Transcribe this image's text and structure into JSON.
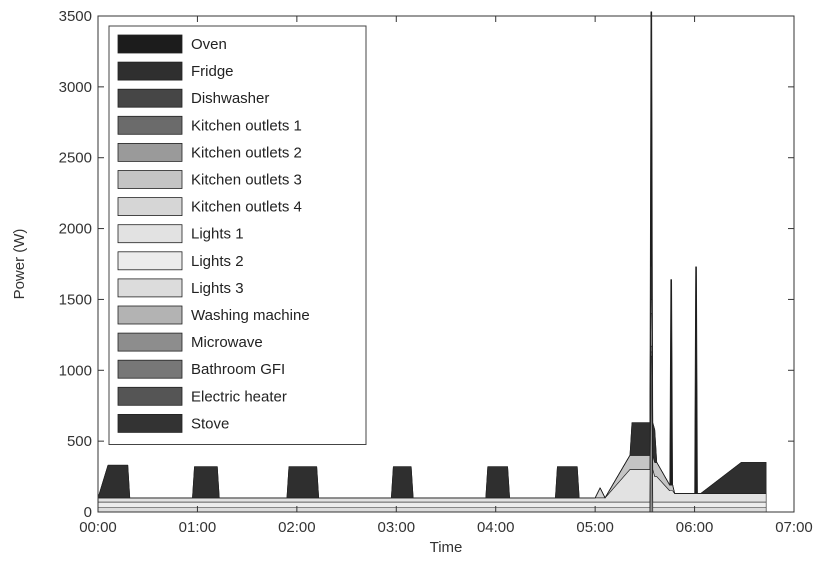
{
  "chart_data": {
    "type": "area",
    "stacked": true,
    "title": "",
    "xlabel": "Time",
    "ylabel": "Power (W)",
    "xlim_hours": [
      0,
      7
    ],
    "ylim": [
      0,
      3500
    ],
    "xticks": [
      "00:00",
      "01:00",
      "02:00",
      "03:00",
      "04:00",
      "05:00",
      "06:00",
      "07:00"
    ],
    "yticks": [
      0,
      500,
      1000,
      1500,
      2000,
      2500,
      3000,
      3500
    ],
    "grid": false,
    "legend_position": "top-left",
    "legend": [
      {
        "name": "Oven",
        "color": "#1c1c1c"
      },
      {
        "name": "Fridge",
        "color": "#2f2f2f"
      },
      {
        "name": "Dishwasher",
        "color": "#464646"
      },
      {
        "name": "Kitchen outlets 1",
        "color": "#6b6b6b"
      },
      {
        "name": "Kitchen outlets 2",
        "color": "#9a9a9a"
      },
      {
        "name": "Kitchen outlets 3",
        "color": "#c4c4c4"
      },
      {
        "name": "Kitchen outlets 4",
        "color": "#d6d6d6"
      },
      {
        "name": "Lights 1",
        "color": "#e2e2e2"
      },
      {
        "name": "Lights 2",
        "color": "#ececec"
      },
      {
        "name": "Lights 3",
        "color": "#dcdcdc"
      },
      {
        "name": "Washing machine",
        "color": "#b3b3b3"
      },
      {
        "name": "Microwave",
        "color": "#8d8d8d"
      },
      {
        "name": "Bathroom GFI",
        "color": "#777777"
      },
      {
        "name": "Electric heater",
        "color": "#555555"
      },
      {
        "name": "Stove",
        "color": "#333333"
      }
    ],
    "stack_order_bottom_to_top": [
      "Stove",
      "Electric heater",
      "Bathroom GFI",
      "Microwave",
      "Washing machine",
      "Lights 3",
      "Lights 2",
      "Lights 1",
      "Kitchen outlets 4",
      "Kitchen outlets 3",
      "Kitchen outlets 2",
      "Kitchen outlets 1",
      "Dishwasher",
      "Fridge",
      "Oven"
    ],
    "time_hours": [
      0,
      0.1,
      0.12,
      0.3,
      0.32,
      0.4,
      0.95,
      0.97,
      1.2,
      1.22,
      1.9,
      1.92,
      2.2,
      2.22,
      2.95,
      2.97,
      3.15,
      3.17,
      3.9,
      3.92,
      4.12,
      4.14,
      4.6,
      4.62,
      4.82,
      4.84,
      5.0,
      5.05,
      5.1,
      5.35,
      5.37,
      5.55,
      5.56,
      5.57,
      5.58,
      5.6,
      5.62,
      5.75,
      5.76,
      5.77,
      5.78,
      5.8,
      5.81,
      6.0,
      6.01,
      6.02,
      6.03,
      6.04,
      6.05,
      6.06,
      6.47,
      6.5,
      6.72
    ],
    "series": [
      {
        "name": "Stove",
        "values": [
          0,
          0,
          0,
          0,
          0,
          0,
          0,
          0,
          0,
          0,
          0,
          0,
          0,
          0,
          0,
          0,
          0,
          0,
          0,
          0,
          0,
          0,
          0,
          0,
          0,
          0,
          0,
          0,
          0,
          0,
          0,
          0,
          0,
          0,
          0,
          0,
          0,
          0,
          0,
          0,
          0,
          0,
          0,
          0,
          0,
          0,
          0,
          0,
          0,
          0,
          0,
          0,
          0
        ]
      },
      {
        "name": "Electric heater",
        "values": [
          0,
          0,
          0,
          0,
          0,
          0,
          0,
          0,
          0,
          0,
          0,
          0,
          0,
          0,
          0,
          0,
          0,
          0,
          0,
          0,
          0,
          0,
          0,
          0,
          0,
          0,
          0,
          0,
          0,
          0,
          0,
          0,
          0,
          0,
          0,
          0,
          0,
          0,
          0,
          0,
          0,
          0,
          0,
          0,
          0,
          0,
          0,
          0,
          0,
          0,
          0,
          0,
          0
        ]
      },
      {
        "name": "Bathroom GFI",
        "values": [
          0,
          0,
          0,
          0,
          0,
          0,
          0,
          0,
          0,
          0,
          0,
          0,
          0,
          0,
          0,
          0,
          0,
          0,
          0,
          0,
          0,
          0,
          0,
          0,
          0,
          0,
          0,
          0,
          0,
          0,
          0,
          0,
          0,
          0,
          0,
          0,
          0,
          0,
          0,
          0,
          0,
          0,
          0,
          0,
          0,
          0,
          0,
          0,
          0,
          0,
          0,
          0,
          0
        ]
      },
      {
        "name": "Microwave",
        "values": [
          0,
          0,
          0,
          0,
          0,
          0,
          0,
          0,
          0,
          0,
          0,
          0,
          0,
          0,
          0,
          0,
          0,
          0,
          0,
          0,
          0,
          0,
          0,
          0,
          0,
          0,
          0,
          0,
          0,
          0,
          0,
          0,
          1100,
          1100,
          0,
          0,
          0,
          0,
          0,
          0,
          0,
          0,
          0,
          0,
          0,
          0,
          0,
          0,
          0,
          0,
          0,
          0,
          0
        ]
      },
      {
        "name": "Washing machine",
        "values": [
          0,
          0,
          0,
          0,
          0,
          0,
          0,
          0,
          0,
          0,
          0,
          0,
          0,
          0,
          0,
          0,
          0,
          0,
          0,
          0,
          0,
          0,
          0,
          0,
          0,
          0,
          0,
          0,
          0,
          0,
          0,
          0,
          0,
          0,
          0,
          0,
          0,
          0,
          0,
          0,
          0,
          0,
          0,
          0,
          0,
          0,
          0,
          0,
          0,
          0,
          0,
          0,
          0
        ]
      },
      {
        "name": "Lights 3",
        "values": [
          30,
          30,
          30,
          30,
          30,
          30,
          30,
          30,
          30,
          30,
          30,
          30,
          30,
          30,
          30,
          30,
          30,
          30,
          30,
          30,
          30,
          30,
          30,
          30,
          30,
          30,
          30,
          30,
          30,
          30,
          30,
          30,
          30,
          30,
          30,
          30,
          30,
          30,
          30,
          30,
          30,
          30,
          30,
          30,
          30,
          30,
          30,
          30,
          30,
          30,
          30,
          30,
          30
        ]
      },
      {
        "name": "Lights 2",
        "values": [
          40,
          40,
          40,
          40,
          40,
          40,
          40,
          40,
          40,
          40,
          40,
          40,
          40,
          40,
          40,
          40,
          40,
          40,
          40,
          40,
          40,
          40,
          40,
          40,
          40,
          40,
          40,
          40,
          40,
          40,
          40,
          40,
          40,
          40,
          40,
          40,
          40,
          40,
          40,
          40,
          40,
          40,
          40,
          40,
          40,
          40,
          40,
          40,
          40,
          40,
          40,
          40,
          40
        ]
      },
      {
        "name": "Lights 1",
        "values": [
          30,
          30,
          30,
          30,
          30,
          30,
          30,
          30,
          30,
          30,
          30,
          30,
          30,
          30,
          30,
          30,
          30,
          30,
          30,
          30,
          30,
          30,
          30,
          30,
          30,
          30,
          30,
          30,
          30,
          230,
          230,
          230,
          230,
          230,
          230,
          180,
          180,
          80,
          80,
          80,
          80,
          60,
          60,
          60,
          60,
          60,
          60,
          60,
          60,
          60,
          60,
          60,
          60
        ]
      },
      {
        "name": "Kitchen outlets 4",
        "values": [
          0,
          0,
          0,
          0,
          0,
          0,
          0,
          0,
          0,
          0,
          0,
          0,
          0,
          0,
          0,
          0,
          0,
          0,
          0,
          0,
          0,
          0,
          0,
          0,
          0,
          0,
          0,
          70,
          0,
          0,
          0,
          0,
          0,
          0,
          0,
          0,
          0,
          0,
          0,
          0,
          0,
          0,
          0,
          0,
          0,
          0,
          0,
          0,
          0,
          0,
          0,
          0,
          0
        ]
      },
      {
        "name": "Kitchen outlets 3",
        "values": [
          0,
          0,
          0,
          0,
          0,
          0,
          0,
          0,
          0,
          0,
          0,
          0,
          0,
          0,
          0,
          0,
          0,
          0,
          0,
          0,
          0,
          0,
          0,
          0,
          0,
          0,
          0,
          0,
          0,
          100,
          100,
          100,
          100,
          100,
          100,
          100,
          100,
          40,
          40,
          40,
          40,
          0,
          0,
          0,
          0,
          0,
          0,
          0,
          0,
          0,
          0,
          0,
          0
        ]
      },
      {
        "name": "Kitchen outlets 2",
        "values": [
          0,
          0,
          0,
          0,
          0,
          0,
          0,
          0,
          0,
          0,
          0,
          0,
          0,
          0,
          0,
          0,
          0,
          0,
          0,
          0,
          0,
          0,
          0,
          0,
          0,
          0,
          0,
          0,
          0,
          0,
          0,
          0,
          0,
          0,
          0,
          0,
          0,
          0,
          0,
          0,
          0,
          0,
          0,
          0,
          0,
          0,
          0,
          0,
          0,
          0,
          0,
          0,
          0
        ]
      },
      {
        "name": "Kitchen outlets 1",
        "values": [
          0,
          0,
          0,
          0,
          0,
          0,
          0,
          0,
          0,
          0,
          0,
          0,
          0,
          0,
          0,
          0,
          0,
          0,
          0,
          0,
          0,
          0,
          0,
          0,
          0,
          0,
          0,
          0,
          0,
          0,
          0,
          0,
          0,
          0,
          0,
          0,
          0,
          0,
          0,
          0,
          0,
          0,
          0,
          0,
          0,
          0,
          0,
          0,
          0,
          0,
          0,
          0,
          0
        ]
      },
      {
        "name": "Dishwasher",
        "values": [
          0,
          0,
          0,
          0,
          0,
          0,
          0,
          0,
          0,
          0,
          0,
          0,
          0,
          0,
          0,
          0,
          0,
          0,
          0,
          0,
          0,
          0,
          0,
          0,
          0,
          0,
          0,
          0,
          0,
          0,
          0,
          0,
          0,
          0,
          0,
          0,
          0,
          0,
          0,
          0,
          0,
          0,
          0,
          0,
          0,
          0,
          0,
          0,
          0,
          0,
          0,
          0,
          0
        ]
      },
      {
        "name": "Fridge",
        "values": [
          0,
          230,
          230,
          230,
          0,
          0,
          0,
          220,
          220,
          0,
          0,
          220,
          220,
          0,
          0,
          220,
          220,
          0,
          0,
          220,
          220,
          0,
          0,
          220,
          220,
          0,
          0,
          0,
          0,
          0,
          230,
          230,
          230,
          230,
          230,
          230,
          0,
          0,
          0,
          0,
          0,
          0,
          0,
          0,
          0,
          0,
          0,
          0,
          0,
          0,
          220,
          220,
          220
        ]
      },
      {
        "name": "Oven",
        "values": [
          0,
          0,
          0,
          0,
          0,
          0,
          0,
          0,
          0,
          0,
          0,
          0,
          0,
          0,
          0,
          0,
          0,
          0,
          0,
          0,
          0,
          0,
          0,
          0,
          0,
          0,
          0,
          0,
          0,
          0,
          0,
          0,
          1800,
          1800,
          0,
          0,
          0,
          0,
          1450,
          1450,
          0,
          0,
          0,
          0,
          1600,
          1600,
          0,
          0,
          0,
          0,
          0,
          0,
          0
        ]
      }
    ]
  }
}
